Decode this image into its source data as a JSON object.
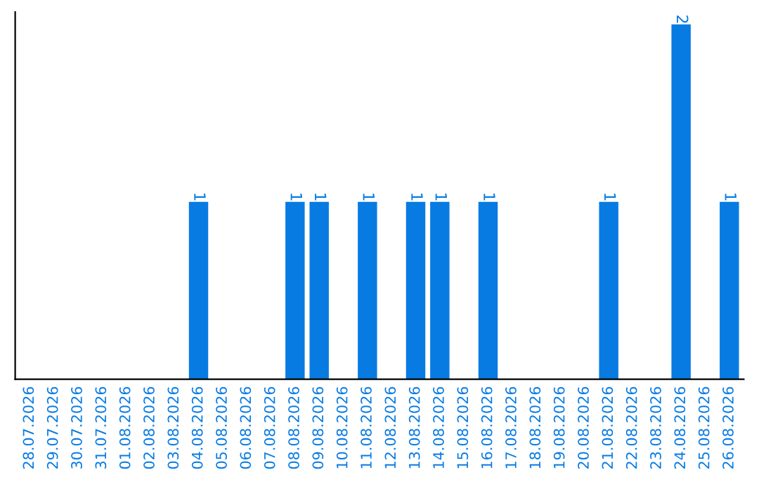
{
  "chart_data": {
    "type": "bar",
    "categories": [
      "28.07.2026",
      "29.07.2026",
      "30.07.2026",
      "31.07.2026",
      "01.08.2026",
      "02.08.2026",
      "03.08.2026",
      "04.08.2026",
      "05.08.2026",
      "06.08.2026",
      "07.08.2026",
      "08.08.2026",
      "09.08.2026",
      "10.08.2026",
      "11.08.2026",
      "12.08.2026",
      "13.08.2026",
      "14.08.2026",
      "15.08.2026",
      "16.08.2026",
      "17.08.2026",
      "18.08.2026",
      "19.08.2026",
      "20.08.2026",
      "21.08.2026",
      "22.08.2026",
      "23.08.2026",
      "24.08.2026",
      "25.08.2026",
      "26.08.2026"
    ],
    "values": [
      0,
      0,
      0,
      0,
      0,
      0,
      0,
      1,
      0,
      0,
      0,
      1,
      1,
      0,
      1,
      0,
      1,
      1,
      0,
      1,
      0,
      0,
      0,
      0,
      1,
      0,
      0,
      2,
      0,
      1
    ],
    "value_labels": [
      null,
      null,
      null,
      null,
      null,
      null,
      null,
      "1",
      null,
      null,
      null,
      "1",
      "1",
      null,
      "1",
      null,
      "1",
      "1",
      null,
      "1",
      null,
      null,
      null,
      null,
      "1",
      null,
      null,
      "2",
      null,
      "1"
    ],
    "color": "#087be3",
    "ylim": [
      0,
      2.07
    ],
    "tick_labels": "x",
    "grid": false
  }
}
